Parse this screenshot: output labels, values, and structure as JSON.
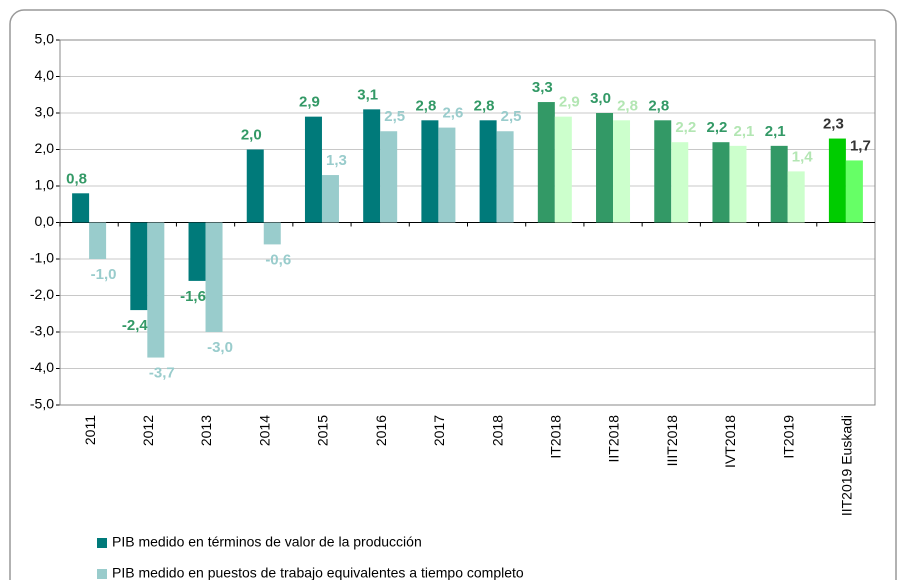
{
  "chart_data": {
    "type": "bar",
    "categories": [
      "2011",
      "2012",
      "2013",
      "2014",
      "2015",
      "2016",
      "2017",
      "2018",
      "IT2018",
      "IIT2018",
      "IIIT2018",
      "IVT2018",
      "IT2019",
      "IIT2019 Euskadi"
    ],
    "series": [
      {
        "name": "PIB medido en términos de valor de la producción",
        "color": "#007a7a",
        "colors": [
          "#007a7a",
          "#007a7a",
          "#007a7a",
          "#007a7a",
          "#007a7a",
          "#007a7a",
          "#007a7a",
          "#007a7a",
          "#339966",
          "#339966",
          "#339966",
          "#339966",
          "#339966",
          "#00cc00"
        ],
        "label_colors": [
          "#339966",
          "#339966",
          "#339966",
          "#339966",
          "#339966",
          "#339966",
          "#339966",
          "#339966",
          "#339966",
          "#339966",
          "#339966",
          "#339966",
          "#339966",
          "#333333"
        ],
        "values": [
          0.8,
          -2.4,
          -1.6,
          2.0,
          2.9,
          3.1,
          2.8,
          2.8,
          3.3,
          3.0,
          2.8,
          2.2,
          2.1,
          2.3
        ],
        "value_labels": [
          "0,8",
          "-2,4",
          "-1,6",
          "2,0",
          "2,9",
          "3,1",
          "2,8",
          "2,8",
          "3,3",
          "3,0",
          "2,8",
          "2,2",
          "2,1",
          "2,3"
        ]
      },
      {
        "name": "PIB medido en puestos de trabajo equivalentes a tiempo completo",
        "color": "#99cccc",
        "colors": [
          "#99cccc",
          "#99cccc",
          "#99cccc",
          "#99cccc",
          "#99cccc",
          "#99cccc",
          "#99cccc",
          "#99cccc",
          "#ccffcc",
          "#ccffcc",
          "#ccffcc",
          "#ccffcc",
          "#ccffcc",
          "#66ff66"
        ],
        "label_colors": [
          "#99cccc",
          "#99cccc",
          "#99cccc",
          "#99cccc",
          "#99cccc",
          "#99cccc",
          "#99cccc",
          "#99cccc",
          "#b3e6b3",
          "#b3e6b3",
          "#b3e6b3",
          "#b3e6b3",
          "#b3e6b3",
          "#333333"
        ],
        "values": [
          -1.0,
          -3.7,
          -3.0,
          -0.6,
          1.3,
          2.5,
          2.6,
          2.5,
          2.9,
          2.8,
          2.2,
          2.1,
          1.4,
          1.7
        ],
        "value_labels": [
          "-1,0",
          "-3,7",
          "-3,0",
          "-0,6",
          "1,3",
          "2,5",
          "2,6",
          "2,5",
          "2,9",
          "2,8",
          "2,2",
          "2,1",
          "1,4",
          "1,7"
        ]
      }
    ],
    "ylim": [
      -5,
      5
    ],
    "yticks": [
      {
        "value": -5,
        "label": "-5,0"
      },
      {
        "value": -4,
        "label": "-4,0"
      },
      {
        "value": -3,
        "label": "-3,0"
      },
      {
        "value": -2,
        "label": "-2,0"
      },
      {
        "value": -1,
        "label": "-1,0"
      },
      {
        "value": 0,
        "label": "0,0"
      },
      {
        "value": 1,
        "label": "1,0"
      },
      {
        "value": 2,
        "label": "2,0"
      },
      {
        "value": 3,
        "label": "3,0"
      },
      {
        "value": 4,
        "label": "4,0"
      },
      {
        "value": 5,
        "label": "5,0"
      }
    ],
    "grid": true
  }
}
